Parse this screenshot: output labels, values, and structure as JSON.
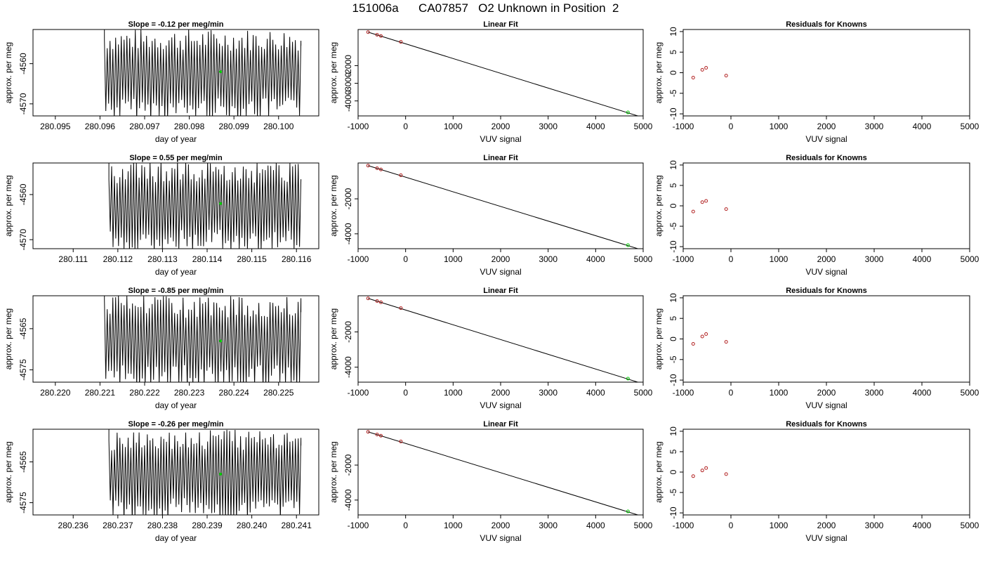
{
  "title": "151006a      CA07857   O2 Unknown in Position  2",
  "colors": {
    "line": "#000000",
    "known_points": "#b22222",
    "unknown_point": "#00cc00"
  },
  "chart_data": [
    {
      "type": "line",
      "row": 0,
      "panel": "time-series",
      "title": "Slope =  -0.12  per meg/min",
      "xlabel": "day of year",
      "ylabel": "approx. per meg",
      "xlim": [
        280.0945,
        280.1009
      ],
      "ylim": [
        -4573,
        -4551.5
      ],
      "xticks": [
        280.095,
        280.096,
        280.097,
        280.098,
        280.099,
        280.1
      ],
      "xtick_labels": [
        "280.095",
        "280.096",
        "280.097",
        "280.098",
        "280.099",
        "280.100"
      ],
      "yticks": [
        -4560,
        -4570
      ],
      "ytick_labels": [
        "-4560",
        "-4570"
      ],
      "trace": {
        "x_start": 280.0961,
        "x_end": 280.1005,
        "mean": -4562.5,
        "cycles": 70
      },
      "highlight_point": {
        "x": 280.0987,
        "y": -4562
      }
    },
    {
      "type": "scatter",
      "row": 0,
      "panel": "linear-fit",
      "title": "Linear Fit",
      "xlabel": "VUV signal",
      "ylabel": "approx. per meg",
      "xlim": [
        -1000,
        5000
      ],
      "ylim": [
        -4850,
        50
      ],
      "xticks": [
        -1000,
        0,
        1000,
        2000,
        3000,
        4000,
        5000
      ],
      "xtick_labels": [
        "-1000",
        "0",
        "1000",
        "2000",
        "3000",
        "4000",
        "5000"
      ],
      "yticks": [
        -2000,
        -3000,
        -4000
      ],
      "ytick_labels": [
        "-2000",
        "-3000",
        "-4000"
      ],
      "fit_line": {
        "x": [
          -790,
          4900
        ],
        "y": [
          -100,
          -4860
        ]
      },
      "known_points": [
        {
          "x": -790,
          "y": -100
        },
        {
          "x": -600,
          "y": -250
        },
        {
          "x": -520,
          "y": -320
        },
        {
          "x": -100,
          "y": -650
        }
      ],
      "unknown_point": {
        "x": 4680,
        "y": -4650
      }
    },
    {
      "type": "scatter",
      "row": 0,
      "panel": "residuals",
      "title": "Residuals for Knowns",
      "xlabel": "VUV signal",
      "ylabel": "approx. per meg",
      "xlim": [
        -1000,
        5000
      ],
      "ylim": [
        -10.5,
        10.5
      ],
      "xticks": [
        -1000,
        0,
        1000,
        2000,
        3000,
        4000,
        5000
      ],
      "xtick_labels": [
        "-1000",
        "0",
        "1000",
        "2000",
        "3000",
        "4000",
        "5000"
      ],
      "yticks": [
        10,
        5,
        0,
        -5,
        -10
      ],
      "ytick_labels": [
        "10",
        "5",
        "0",
        "-5",
        "-10"
      ],
      "known_points": [
        {
          "x": -790,
          "y": -1.2
        },
        {
          "x": -600,
          "y": 0.7
        },
        {
          "x": -520,
          "y": 1.2
        },
        {
          "x": -100,
          "y": -0.7
        }
      ]
    },
    {
      "type": "line",
      "row": 1,
      "panel": "time-series",
      "title": "Slope =  0.55  per meg/min",
      "xlabel": "day of year",
      "ylabel": "approx. per meg",
      "xlim": [
        280.1101,
        280.1165
      ],
      "ylim": [
        -4572,
        -4553
      ],
      "xticks": [
        280.111,
        280.112,
        280.113,
        280.114,
        280.115,
        280.116
      ],
      "xtick_labels": [
        "280.111",
        "280.112",
        "280.113",
        "280.114",
        "280.115",
        "280.116"
      ],
      "yticks": [
        -4560,
        -4570
      ],
      "ytick_labels": [
        "-4560",
        "-4570"
      ],
      "trace": {
        "x_start": 280.1118,
        "x_end": 280.1161,
        "mean": -4562.5,
        "cycles": 70
      },
      "highlight_point": {
        "x": 280.1143,
        "y": -4562
      }
    },
    {
      "type": "scatter",
      "row": 1,
      "panel": "linear-fit",
      "title": "Linear Fit",
      "xlabel": "VUV signal",
      "ylabel": "approx. per meg",
      "xlim": [
        -1000,
        5000
      ],
      "ylim": [
        -4850,
        50
      ],
      "xticks": [
        -1000,
        0,
        1000,
        2000,
        3000,
        4000,
        5000
      ],
      "xtick_labels": [
        "-1000",
        "0",
        "1000",
        "2000",
        "3000",
        "4000",
        "5000"
      ],
      "yticks": [
        -2000,
        -4000
      ],
      "ytick_labels": [
        "-2000",
        "-4000"
      ],
      "fit_line": {
        "x": [
          -790,
          4900
        ],
        "y": [
          -100,
          -4860
        ]
      },
      "known_points": [
        {
          "x": -790,
          "y": -100
        },
        {
          "x": -600,
          "y": -250
        },
        {
          "x": -520,
          "y": -320
        },
        {
          "x": -100,
          "y": -650
        }
      ],
      "unknown_point": {
        "x": 4680,
        "y": -4650
      }
    },
    {
      "type": "scatter",
      "row": 1,
      "panel": "residuals",
      "title": "Residuals for Knowns",
      "xlabel": "VUV signal",
      "ylabel": "approx. per meg",
      "xlim": [
        -1000,
        5000
      ],
      "ylim": [
        -10.5,
        10.5
      ],
      "xticks": [
        -1000,
        0,
        1000,
        2000,
        3000,
        4000,
        5000
      ],
      "xtick_labels": [
        "-1000",
        "0",
        "1000",
        "2000",
        "3000",
        "4000",
        "5000"
      ],
      "yticks": [
        10,
        5,
        0,
        -5,
        -10
      ],
      "ytick_labels": [
        "10",
        "5",
        "0",
        "-5",
        "-10"
      ],
      "known_points": [
        {
          "x": -790,
          "y": -1.4
        },
        {
          "x": -600,
          "y": 0.9
        },
        {
          "x": -520,
          "y": 1.2
        },
        {
          "x": -100,
          "y": -0.8
        }
      ]
    },
    {
      "type": "line",
      "row": 2,
      "panel": "time-series",
      "title": "Slope =  -0.85  per meg/min",
      "xlabel": "day of year",
      "ylabel": "approx. per meg",
      "xlim": [
        280.2195,
        280.2259
      ],
      "ylim": [
        -4578,
        -4557
      ],
      "xticks": [
        280.22,
        280.221,
        280.222,
        280.223,
        280.224,
        280.225
      ],
      "xtick_labels": [
        "280.220",
        "280.221",
        "280.222",
        "280.223",
        "280.224",
        "280.225"
      ],
      "yticks": [
        -4565,
        -4575
      ],
      "ytick_labels": [
        "-4565",
        "-4575"
      ],
      "trace": {
        "x_start": 280.2211,
        "x_end": 280.2255,
        "mean": -4568,
        "cycles": 70
      },
      "highlight_point": {
        "x": 280.2237,
        "y": -4568
      }
    },
    {
      "type": "scatter",
      "row": 2,
      "panel": "linear-fit",
      "title": "Linear Fit",
      "xlabel": "VUV signal",
      "ylabel": "approx. per meg",
      "xlim": [
        -1000,
        5000
      ],
      "ylim": [
        -4850,
        50
      ],
      "xticks": [
        -1000,
        0,
        1000,
        2000,
        3000,
        4000,
        5000
      ],
      "xtick_labels": [
        "-1000",
        "0",
        "1000",
        "2000",
        "3000",
        "4000",
        "5000"
      ],
      "yticks": [
        -2000,
        -4000
      ],
      "ytick_labels": [
        "-2000",
        "-4000"
      ],
      "fit_line": {
        "x": [
          -790,
          4900
        ],
        "y": [
          -100,
          -4860
        ]
      },
      "known_points": [
        {
          "x": -790,
          "y": -100
        },
        {
          "x": -600,
          "y": -250
        },
        {
          "x": -520,
          "y": -320
        },
        {
          "x": -100,
          "y": -650
        }
      ],
      "unknown_point": {
        "x": 4680,
        "y": -4650
      }
    },
    {
      "type": "scatter",
      "row": 2,
      "panel": "residuals",
      "title": "Residuals for Knowns",
      "xlabel": "VUV signal",
      "ylabel": "approx. per meg",
      "xlim": [
        -1000,
        5000
      ],
      "ylim": [
        -10.5,
        10.5
      ],
      "xticks": [
        -1000,
        0,
        1000,
        2000,
        3000,
        4000,
        5000
      ],
      "xtick_labels": [
        "-1000",
        "0",
        "1000",
        "2000",
        "3000",
        "4000",
        "5000"
      ],
      "yticks": [
        10,
        5,
        0,
        -5,
        -10
      ],
      "ytick_labels": [
        "10",
        "5",
        "0",
        "-5",
        "-10"
      ],
      "known_points": [
        {
          "x": -790,
          "y": -1.2
        },
        {
          "x": -600,
          "y": 0.6
        },
        {
          "x": -520,
          "y": 1.2
        },
        {
          "x": -100,
          "y": -0.7
        }
      ]
    },
    {
      "type": "line",
      "row": 3,
      "panel": "time-series",
      "title": "Slope =  -0.26  per meg/min",
      "xlabel": "day of year",
      "ylabel": "approx. per meg",
      "xlim": [
        280.2351,
        280.2415
      ],
      "ylim": [
        -4578,
        -4557
      ],
      "xticks": [
        280.236,
        280.237,
        280.238,
        280.239,
        280.24,
        280.241
      ],
      "xtick_labels": [
        "280.236",
        "280.237",
        "280.238",
        "280.239",
        "280.240",
        "280.241"
      ],
      "yticks": [
        -4565,
        -4575
      ],
      "ytick_labels": [
        "-4565",
        "-4575"
      ],
      "trace": {
        "x_start": 280.2368,
        "x_end": 280.2411,
        "mean": -4568,
        "cycles": 70
      },
      "highlight_point": {
        "x": 280.2393,
        "y": -4568
      }
    },
    {
      "type": "scatter",
      "row": 3,
      "panel": "linear-fit",
      "title": "Linear Fit",
      "xlabel": "VUV signal",
      "ylabel": "approx. per meg",
      "xlim": [
        -1000,
        5000
      ],
      "ylim": [
        -4850,
        50
      ],
      "xticks": [
        -1000,
        0,
        1000,
        2000,
        3000,
        4000,
        5000
      ],
      "xtick_labels": [
        "-1000",
        "0",
        "1000",
        "2000",
        "3000",
        "4000",
        "5000"
      ],
      "yticks": [
        -2000,
        -4000
      ],
      "ytick_labels": [
        "-2000",
        "-4000"
      ],
      "fit_line": {
        "x": [
          -790,
          4900
        ],
        "y": [
          -100,
          -4860
        ]
      },
      "known_points": [
        {
          "x": -790,
          "y": -100
        },
        {
          "x": -600,
          "y": -250
        },
        {
          "x": -520,
          "y": -320
        },
        {
          "x": -100,
          "y": -650
        }
      ],
      "unknown_point": {
        "x": 4680,
        "y": -4650
      }
    },
    {
      "type": "scatter",
      "row": 3,
      "panel": "residuals",
      "title": "Residuals for Knowns",
      "xlabel": "VUV signal",
      "ylabel": "approx. per meg",
      "xlim": [
        -1000,
        5000
      ],
      "ylim": [
        -10.5,
        10.5
      ],
      "xticks": [
        -1000,
        0,
        1000,
        2000,
        3000,
        4000,
        5000
      ],
      "xtick_labels": [
        "-1000",
        "0",
        "1000",
        "2000",
        "3000",
        "4000",
        "5000"
      ],
      "yticks": [
        10,
        5,
        0,
        -5,
        -10
      ],
      "ytick_labels": [
        "10",
        "5",
        "0",
        "-5",
        "-10"
      ],
      "known_points": [
        {
          "x": -790,
          "y": -1.0
        },
        {
          "x": -600,
          "y": 0.4
        },
        {
          "x": -520,
          "y": 1.0
        },
        {
          "x": -100,
          "y": -0.5
        }
      ]
    }
  ]
}
